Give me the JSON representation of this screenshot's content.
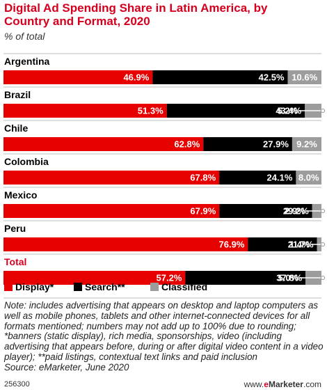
{
  "chart_data": {
    "type": "bar",
    "orientation": "horizontal",
    "stacked": true,
    "title": "Digital Ad Spending Share in Latin America, by Country and Format, 2020",
    "subtitle": "% of total",
    "categories": [
      "Argentina",
      "Brazil",
      "Chile",
      "Colombia",
      "Mexico",
      "Peru",
      "Total"
    ],
    "series": [
      {
        "name": "Display*",
        "color": "#e60000",
        "values": [
          46.9,
          51.3,
          62.8,
          67.8,
          67.9,
          76.9,
          57.2
        ]
      },
      {
        "name": "Search**",
        "color": "#000000",
        "values": [
          42.5,
          43.4,
          27.9,
          24.1,
          29.2,
          21.7,
          37.8
        ]
      },
      {
        "name": "Classified",
        "color": "#9c9c9c",
        "values": [
          10.6,
          5.2,
          9.2,
          8.0,
          2.9,
          1.4,
          5.0
        ]
      }
    ],
    "value_format": "%",
    "highlighted_category": "Total",
    "legend_position": "bottom-left"
  },
  "note": "Note: includes advertising that appears on desktop and laptop computers as well as mobile phones, tablets and other internet-connected devices for all formats mentioned; numbers may not add up to 100% due to rounding; *banners (static display), rich media, sponsorships, video (including advertising that appears before, during or after digital video content in a video player); **paid listings, contextual text links and paid inclusion",
  "source": "Source: eMarketer, June 2020",
  "chart_id": "256300",
  "brand": {
    "prefix": "www.",
    "em": "e",
    "name": "Marketer",
    "suffix": ".com"
  }
}
